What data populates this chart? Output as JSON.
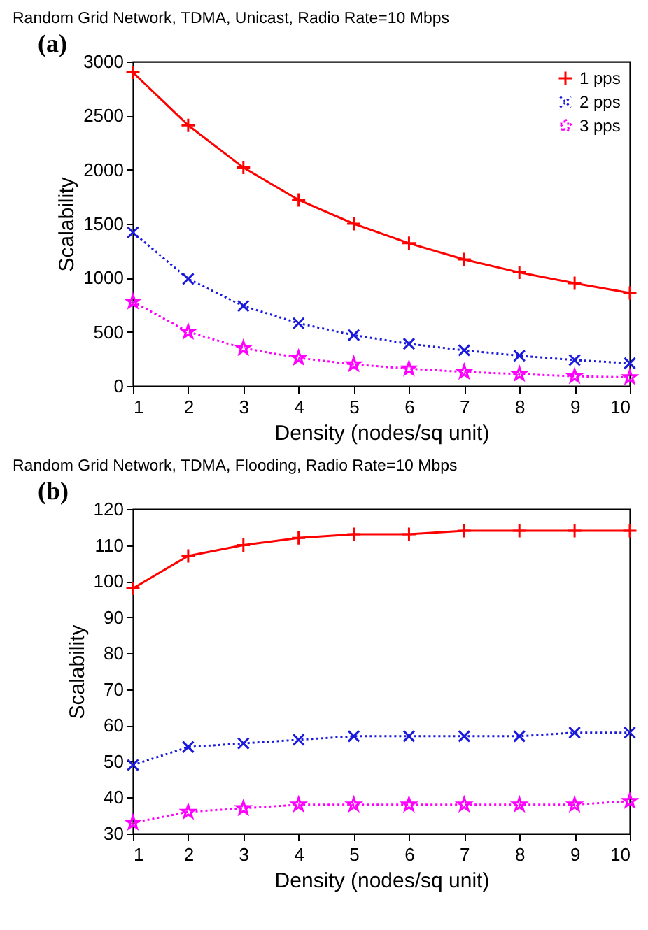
{
  "chart_data": [
    {
      "type": "line",
      "title": "Random Grid Network, TDMA, Unicast, Radio Rate=10 Mbps",
      "annotations": [
        "(a)"
      ],
      "xlabel": "Density (nodes/sq unit)",
      "ylabel": "Scalability",
      "x": [
        1,
        2,
        3,
        4,
        5,
        6,
        7,
        8,
        9,
        10
      ],
      "xlim": [
        1,
        10
      ],
      "xticks": [
        1,
        2,
        3,
        4,
        5,
        6,
        7,
        8,
        9,
        10
      ],
      "ylim": [
        0,
        3000
      ],
      "yticks": [
        0,
        500,
        1000,
        1500,
        2000,
        2500,
        3000
      ],
      "legend": "top right",
      "grid": false,
      "series": [
        {
          "name": "1 pps",
          "color": "#ff0000",
          "marker": "plus",
          "line_style": "solid",
          "values": [
            2900,
            2410,
            2020,
            1720,
            1500,
            1320,
            1170,
            1050,
            950,
            860
          ]
        },
        {
          "name": "2 pps",
          "color": "#1a1adc",
          "marker": "cross",
          "line_style": "dotted",
          "values": [
            1420,
            990,
            740,
            580,
            470,
            390,
            330,
            280,
            240,
            210
          ]
        },
        {
          "name": "3 pps",
          "color": "#ff00ff",
          "marker": "star",
          "line_style": "dotted",
          "values": [
            780,
            500,
            350,
            260,
            200,
            160,
            130,
            110,
            90,
            80
          ]
        }
      ]
    },
    {
      "type": "line",
      "title": "Random Grid Network, TDMA, Flooding, Radio Rate=10 Mbps",
      "annotations": [
        "(b)"
      ],
      "xlabel": "Density (nodes/sq unit)",
      "ylabel": "Scalability",
      "x": [
        1,
        2,
        3,
        4,
        5,
        6,
        7,
        8,
        9,
        10
      ],
      "xlim": [
        1,
        10
      ],
      "xticks": [
        1,
        2,
        3,
        4,
        5,
        6,
        7,
        8,
        9,
        10
      ],
      "ylim": [
        30,
        120
      ],
      "yticks": [
        30,
        40,
        50,
        60,
        70,
        80,
        90,
        100,
        110,
        120
      ],
      "legend": "top right",
      "grid": false,
      "series": [
        {
          "name": "1 pps",
          "color": "#ff0000",
          "marker": "plus",
          "line_style": "solid",
          "values": [
            98,
            107,
            110,
            112,
            113,
            113,
            114,
            114,
            114,
            114
          ]
        },
        {
          "name": "2 pps",
          "color": "#1a1adc",
          "marker": "cross",
          "line_style": "dotted",
          "values": [
            49,
            54,
            55,
            56,
            57,
            57,
            57,
            57,
            58,
            58
          ]
        },
        {
          "name": "3 pps",
          "color": "#ff00ff",
          "marker": "star",
          "line_style": "dotted",
          "values": [
            33,
            36,
            37,
            38,
            38,
            38,
            38,
            38,
            38,
            39
          ]
        }
      ]
    }
  ]
}
